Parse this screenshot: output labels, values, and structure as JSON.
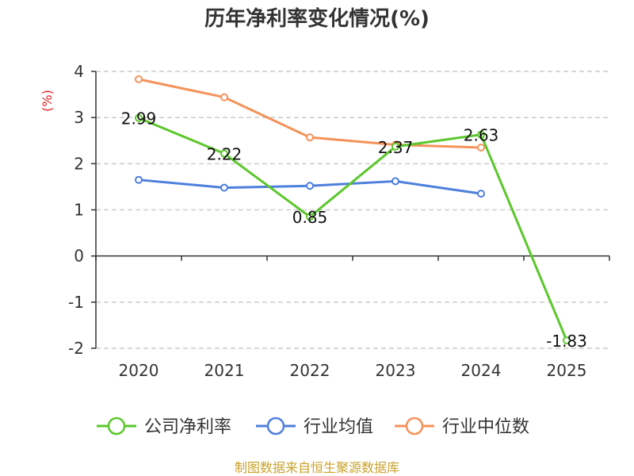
{
  "chart_data": {
    "type": "line",
    "title": "历年净利率变化情况(%)",
    "unit": "(%)",
    "categories": [
      "2020",
      "2021",
      "2022",
      "2023",
      "2024",
      "2025"
    ],
    "ylim": [
      -2,
      4
    ],
    "yticks": [
      "4",
      "3",
      "2",
      "1",
      "0",
      "-1",
      "-2"
    ],
    "ytick_values": [
      4,
      3,
      2,
      1,
      0,
      -1,
      -2
    ],
    "grid": true,
    "legend_position": "bottom",
    "series": [
      {
        "name": "公司净利率",
        "color": "#5cc72c",
        "values": [
          2.99,
          2.22,
          0.85,
          2.37,
          2.63,
          -1.83
        ],
        "labels": [
          "2.99",
          "2.22",
          "0.85",
          "2.37",
          "2.63",
          "-1.83"
        ]
      },
      {
        "name": "行业均值",
        "color": "#4d7fdc",
        "values": [
          1.65,
          1.48,
          1.52,
          1.62,
          1.35,
          null
        ],
        "labels": []
      },
      {
        "name": "行业中位数",
        "color": "#f5925a",
        "values": [
          3.83,
          3.44,
          2.57,
          2.41,
          2.35,
          null
        ],
        "labels": []
      }
    ]
  },
  "source_text": "制图数据来自恒生聚源数据库",
  "colors": {
    "unit": "#e02020",
    "source": "#c9a22a",
    "axis": "#333333",
    "grid": "#cccccc"
  }
}
